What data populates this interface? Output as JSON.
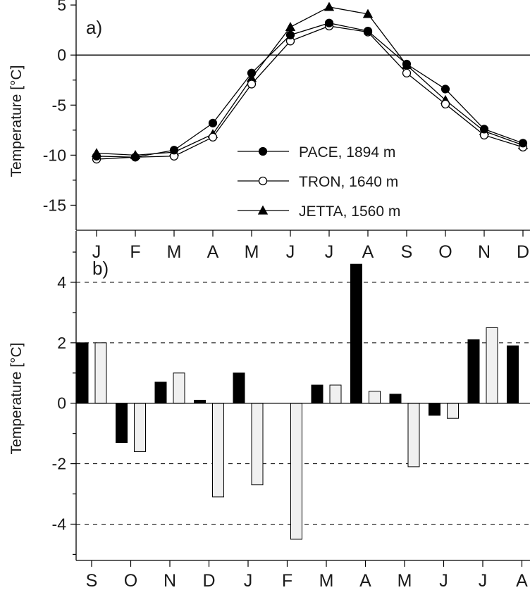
{
  "chart_data": [
    {
      "type": "line",
      "panel_label": "a)",
      "ylabel": "Temperature [°C]",
      "ylim": [
        -17.5,
        5.5
      ],
      "yticks": [
        5,
        0,
        -5,
        -10,
        -15
      ],
      "categories": [
        "J",
        "F",
        "M",
        "A",
        "M",
        "J",
        "J",
        "A",
        "S",
        "O",
        "N",
        "D"
      ],
      "zero_line": true,
      "legend_position": "center-right",
      "series": [
        {
          "name": "PACE, 1894 m",
          "marker": "filled-circle",
          "values": [
            -10.1,
            -10.2,
            -9.5,
            -6.8,
            -1.8,
            2.0,
            3.2,
            2.4,
            -0.9,
            -3.4,
            -7.4,
            -8.8
          ]
        },
        {
          "name": "TRON, 1640 m",
          "marker": "open-circle",
          "values": [
            -10.4,
            -10.2,
            -10.1,
            -8.2,
            -2.9,
            1.4,
            2.9,
            2.3,
            -1.8,
            -4.9,
            -8.0,
            -9.2
          ]
        },
        {
          "name": "JETTA, 1560 m",
          "marker": "filled-triangle",
          "values": [
            -9.8,
            -10.0,
            -9.7,
            -7.9,
            -2.3,
            2.8,
            4.8,
            4.1,
            -1.0,
            -4.5,
            -7.6,
            -9.0
          ]
        }
      ]
    },
    {
      "type": "bar",
      "panel_label": "b)",
      "ylabel": "Temperature [°C]",
      "ylim": [
        -5.2,
        5.7
      ],
      "yticks": [
        4,
        2,
        0,
        -2,
        -4
      ],
      "grid": "dashed horizontal at ±2, ±4",
      "categories": [
        "S",
        "O",
        "N",
        "D",
        "J",
        "F",
        "M",
        "A",
        "M",
        "J",
        "J",
        "A"
      ],
      "series": [
        {
          "color": "#000000",
          "values": [
            2.0,
            -1.3,
            0.7,
            0.1,
            1.0,
            0,
            0.6,
            4.6,
            0.3,
            -0.4,
            2.1,
            1.9
          ]
        },
        {
          "color": "#f0f0f0",
          "values": [
            2.0,
            -1.6,
            1.0,
            -3.1,
            -2.7,
            -4.5,
            0.6,
            0.4,
            -2.1,
            -0.5,
            2.5,
            null
          ]
        }
      ]
    }
  ]
}
